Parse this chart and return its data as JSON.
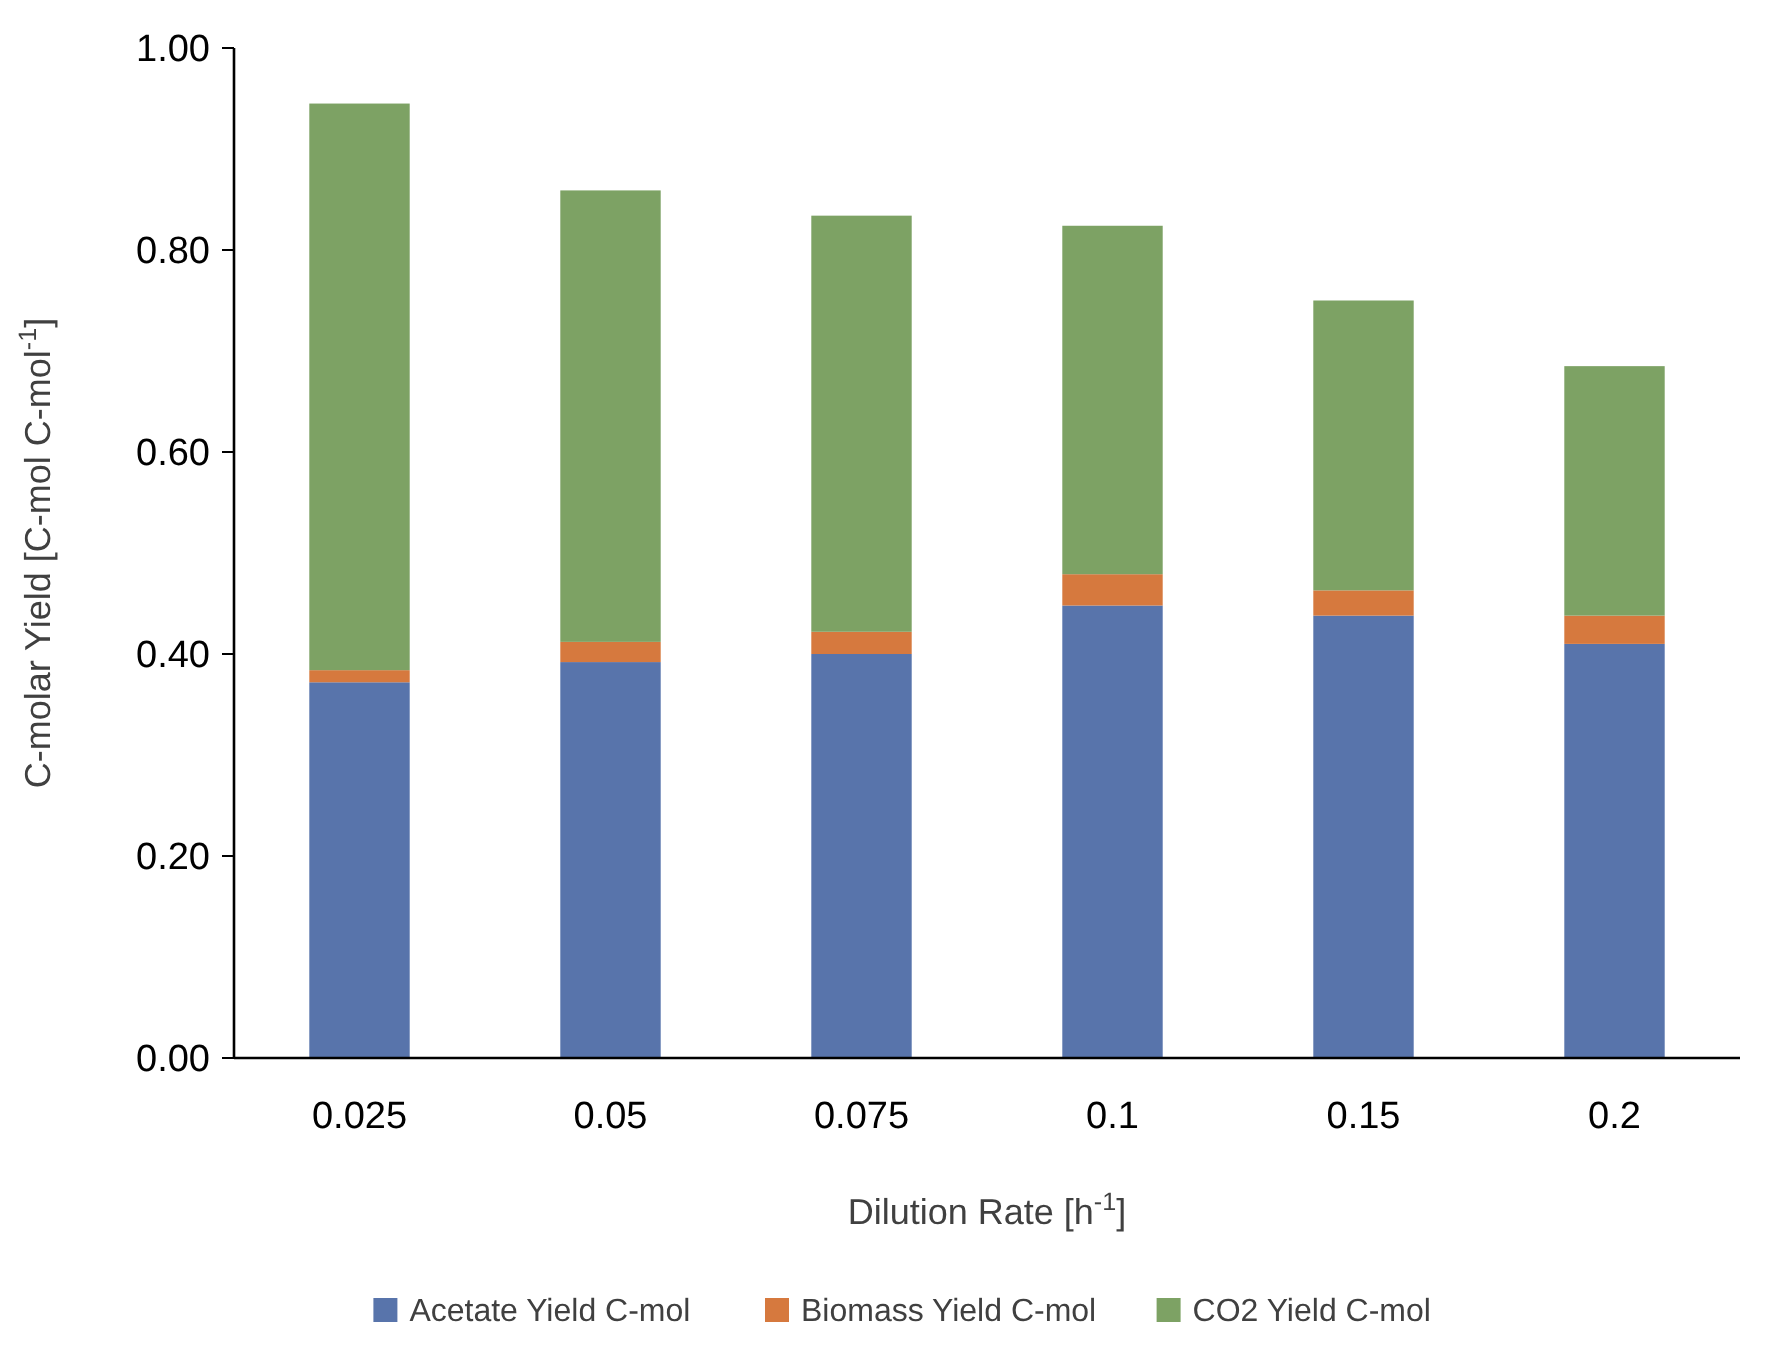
{
  "chart_data": {
    "type": "bar",
    "stacked": true,
    "xlabel": "Dilution Rate [h$^{-1}$]",
    "ylabel": "C-molar Yield [C-mol C-mol$^{-1}$]",
    "categories": [
      "0.025",
      "0.05",
      "0.075",
      "0.1",
      "0.15",
      "0.2"
    ],
    "series": [
      {
        "name": "Acetate Yield C-mol",
        "color": "#5874ab",
        "values": [
          0.372,
          0.392,
          0.4,
          0.448,
          0.438,
          0.41
        ]
      },
      {
        "name": "Biomass Yield C-mol",
        "color": "#d6793e",
        "values": [
          0.012,
          0.02,
          0.022,
          0.031,
          0.025,
          0.028
        ]
      },
      {
        "name": "CO2 Yield C-mol",
        "color": "#7da264",
        "values": [
          0.561,
          0.447,
          0.412,
          0.345,
          0.287,
          0.247
        ]
      }
    ],
    "ylim": [
      0,
      1
    ],
    "yticks": [
      {
        "value": 0,
        "label": "0.00"
      },
      {
        "value": 0.2,
        "label": "0.20"
      },
      {
        "value": 0.4,
        "label": "0.40"
      },
      {
        "value": 0.6,
        "label": "0.60"
      },
      {
        "value": 0.8,
        "label": "0.80"
      },
      {
        "value": 1,
        "label": "1.00"
      }
    ],
    "grid": false,
    "legend": "bottom"
  }
}
